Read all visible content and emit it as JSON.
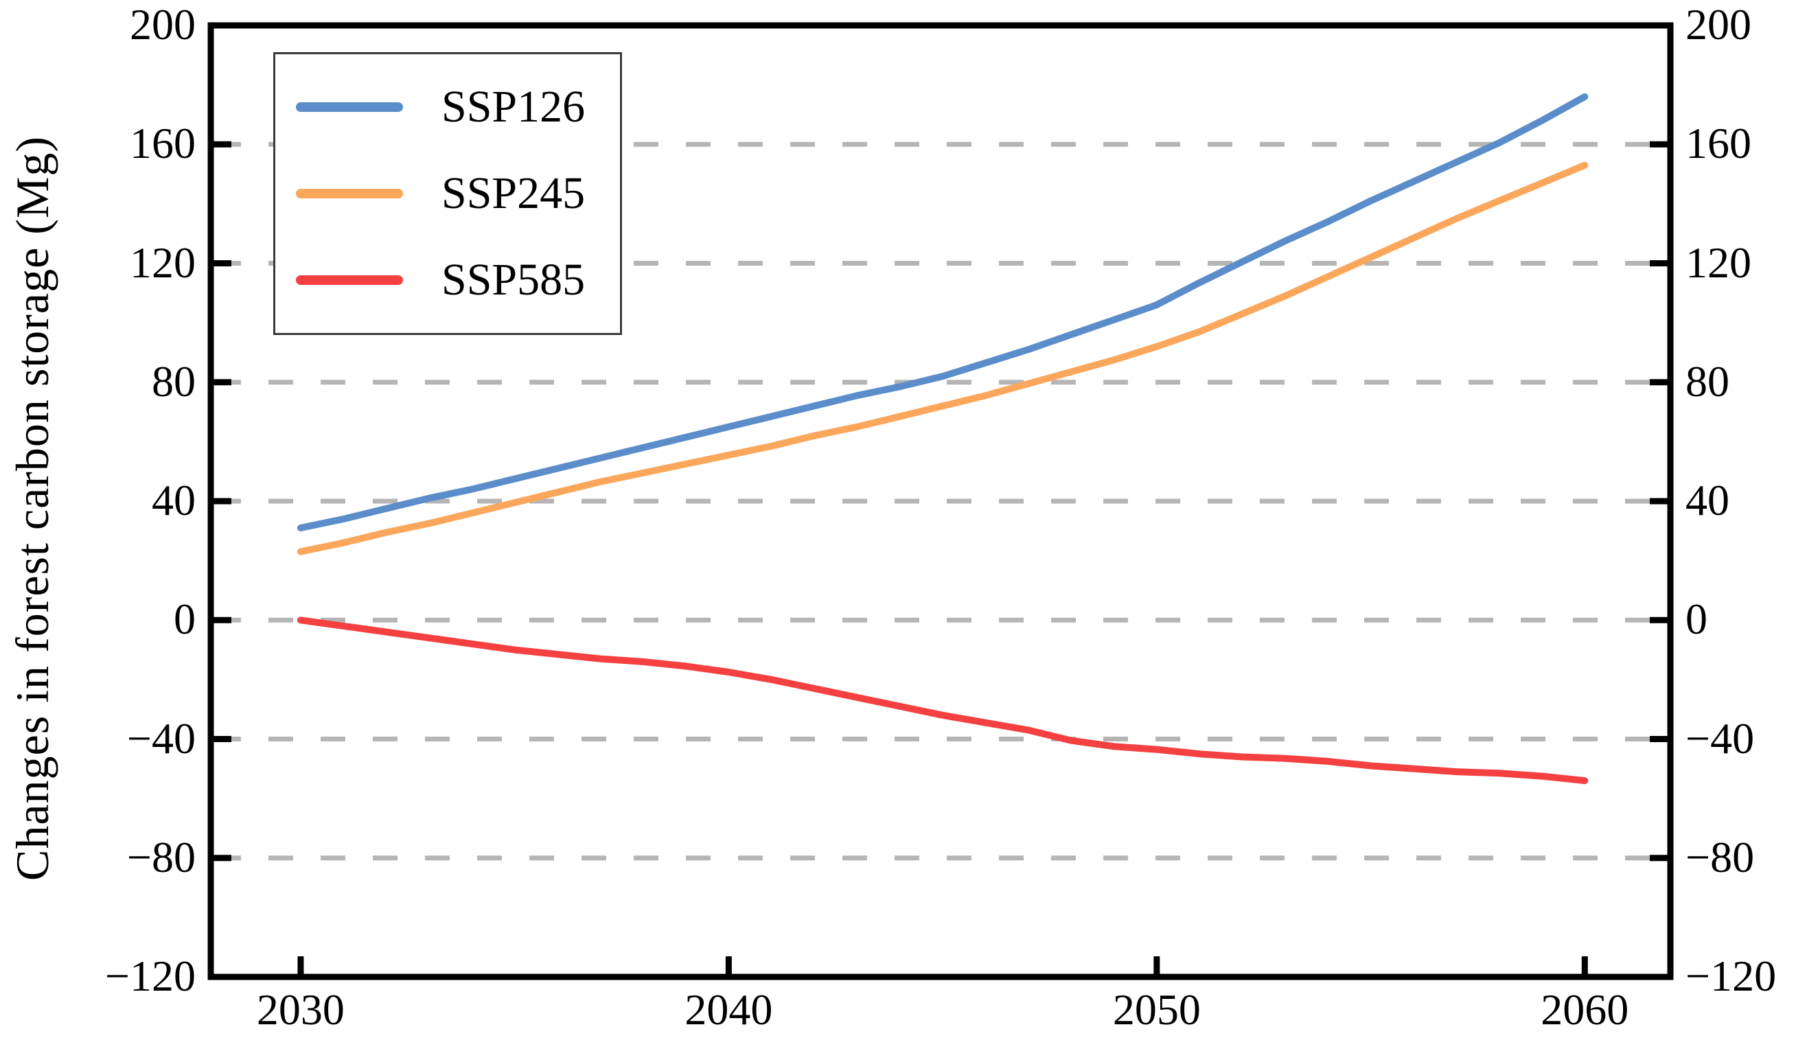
{
  "chart_data": {
    "type": "line",
    "title": "",
    "xlabel": "",
    "ylabel": "Changes in forest carbon storage (Mg)",
    "xlim": [
      2027.9,
      2062.0
    ],
    "ylim": [
      -120,
      200
    ],
    "grid": {
      "show": true,
      "style": "dashed",
      "color": "#b5b5b5",
      "values": [
        160,
        120,
        80,
        40,
        0,
        -40,
        -80
      ]
    },
    "axis_color": "#000000",
    "legend_position": "top-left",
    "yticks": [
      {
        "value": 200,
        "label": "200"
      },
      {
        "value": 160,
        "label": "160"
      },
      {
        "value": 120,
        "label": "120"
      },
      {
        "value": 80,
        "label": "80"
      },
      {
        "value": 40,
        "label": "40"
      },
      {
        "value": 0,
        "label": "0"
      },
      {
        "value": -40,
        "label": "−40"
      },
      {
        "value": -80,
        "label": "−80"
      },
      {
        "value": -120,
        "label": "−120"
      }
    ],
    "xticks": [
      {
        "value": 2030,
        "label": "2030"
      },
      {
        "value": 2040,
        "label": "2040"
      },
      {
        "value": 2050,
        "label": "2050"
      },
      {
        "value": 2060,
        "label": "2060"
      }
    ],
    "x": [
      2030,
      2031,
      2032,
      2033,
      2034,
      2035,
      2036,
      2037,
      2038,
      2039,
      2040,
      2041,
      2042,
      2043,
      2044,
      2045,
      2046,
      2047,
      2048,
      2049,
      2050,
      2051,
      2052,
      2053,
      2054,
      2055,
      2056,
      2057,
      2058,
      2059,
      2060
    ],
    "series": [
      {
        "name": "SSP126",
        "color": "#5A8DC9",
        "values": [
          31,
          34,
          37.5,
          41,
          44,
          47.5,
          51,
          54.5,
          58,
          61.5,
          65,
          68.5,
          72,
          75.5,
          78.5,
          82,
          86.5,
          91,
          96,
          101,
          106,
          113.5,
          120.5,
          127.5,
          134,
          141,
          147.5,
          154,
          160.5,
          168,
          176
        ]
      },
      {
        "name": "SSP245",
        "color": "#FAA75C",
        "values": [
          23,
          26,
          29.5,
          32.5,
          36,
          39.5,
          43,
          46.5,
          49.5,
          52.5,
          55.5,
          58.5,
          62,
          65,
          68.5,
          72,
          75.5,
          79.5,
          83.5,
          87.5,
          92,
          97,
          103,
          109,
          115.5,
          122,
          128.5,
          135,
          141,
          147,
          153
        ]
      },
      {
        "name": "SSP585",
        "color": "#F44040",
        "values": [
          0,
          -2,
          -4,
          -6,
          -8,
          -10,
          -11.5,
          -13,
          -14,
          -15.5,
          -17.5,
          -20,
          -23,
          -26,
          -29,
          -32,
          -34.5,
          -37,
          -40.5,
          -42.5,
          -43.5,
          -45,
          -46,
          -46.5,
          -47.5,
          -49,
          -50,
          -51,
          -51.5,
          -52.5,
          -54
        ]
      }
    ]
  }
}
